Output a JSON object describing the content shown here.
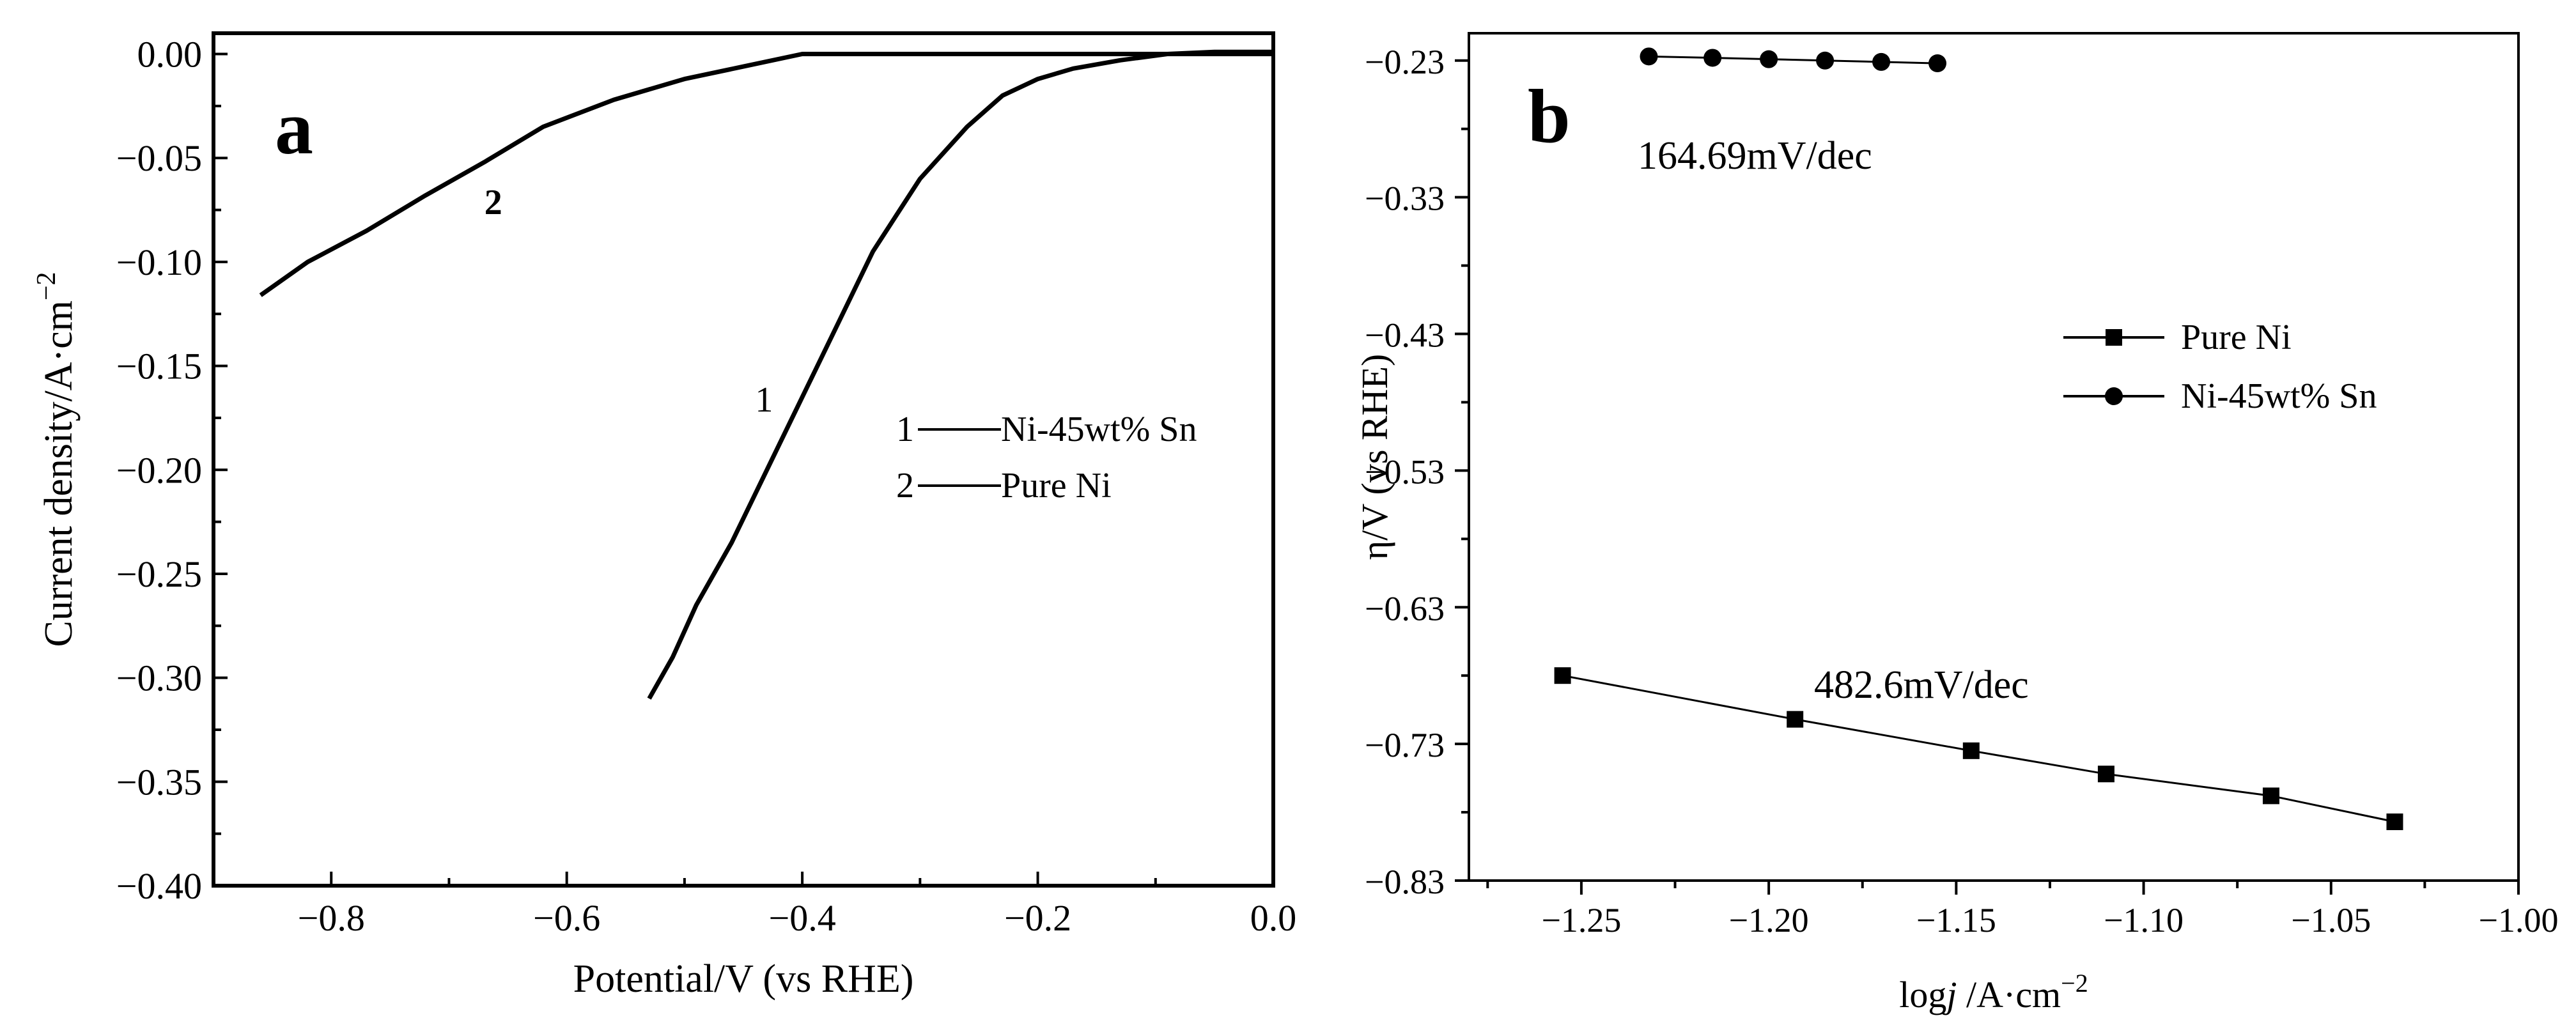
{
  "chart_data": [
    {
      "panel": "a",
      "type": "line",
      "xlabel": "Potential/V (vs RHE)",
      "ylabel_main": "Current density/A·cm",
      "ylabel_sup": "−2",
      "xlim": [
        -0.9,
        0.0
      ],
      "ylim": [
        -0.4,
        0.01
      ],
      "x_ticks": [
        -0.8,
        -0.6,
        -0.4,
        -0.2,
        0.0
      ],
      "x_tick_labels": [
        "−0.8",
        "−0.6",
        "−0.4",
        "−0.2",
        "0.0"
      ],
      "y_ticks": [
        0.0,
        -0.05,
        -0.1,
        -0.15,
        -0.2,
        -0.25,
        -0.3,
        -0.35,
        -0.4
      ],
      "y_tick_labels": [
        "0.00",
        "−0.05",
        "−0.10",
        "−0.15",
        "−0.20",
        "−0.25",
        "−0.30",
        "−0.35",
        "−0.40"
      ],
      "legend": [
        {
          "num": "1",
          "label": "Ni-45wt% Sn"
        },
        {
          "num": "2",
          "label": "Pure Ni"
        }
      ],
      "series": [
        {
          "name": "Ni-45wt% Sn",
          "curve_label": "1",
          "x": [
            -0.53,
            -0.51,
            -0.49,
            -0.46,
            -0.43,
            -0.4,
            -0.37,
            -0.34,
            -0.3,
            -0.26,
            -0.23,
            -0.2,
            -0.17,
            -0.13,
            -0.09,
            -0.05,
            -0.02,
            0.0
          ],
          "y": [
            -0.31,
            -0.29,
            -0.265,
            -0.235,
            -0.2,
            -0.165,
            -0.13,
            -0.095,
            -0.06,
            -0.035,
            -0.02,
            -0.012,
            -0.007,
            -0.003,
            0.0,
            0.001,
            0.001,
            0.001
          ]
        },
        {
          "name": "Pure Ni",
          "curve_label": "2",
          "x": [
            -0.86,
            -0.82,
            -0.77,
            -0.72,
            -0.67,
            -0.62,
            -0.56,
            -0.5,
            -0.45,
            -0.4,
            -0.3,
            -0.2,
            -0.1,
            0.0
          ],
          "y": [
            -0.116,
            -0.1,
            -0.085,
            -0.068,
            -0.052,
            -0.035,
            -0.022,
            -0.012,
            -0.006,
            0.0,
            0.0,
            0.0,
            0.0,
            0.0
          ]
        }
      ]
    },
    {
      "panel": "b",
      "type": "scatter",
      "xlabel_main": "log",
      "xlabel_italic": "j",
      "xlabel_rest": " /A·cm",
      "xlabel_sup": "−2",
      "ylabel": "η/V (vs RHE)",
      "xlim": [
        -1.28,
        -1.0
      ],
      "ylim": [
        -0.83,
        -0.21
      ],
      "x_ticks": [
        -1.25,
        -1.2,
        -1.15,
        -1.1,
        -1.05,
        -1.0
      ],
      "x_tick_labels": [
        "−1.25",
        "−1.20",
        "−1.15",
        "−1.10",
        "−1.05",
        "−1.00"
      ],
      "y_ticks": [
        -0.23,
        -0.33,
        -0.43,
        -0.53,
        -0.63,
        -0.73,
        -0.83
      ],
      "y_tick_labels": [
        "−0.23",
        "−0.33",
        "−0.43",
        "−0.53",
        "−0.63",
        "−0.73",
        "−0.83"
      ],
      "legend": [
        {
          "label": "Pure Ni",
          "marker": "square"
        },
        {
          "label": "Ni-45wt% Sn",
          "marker": "circle"
        }
      ],
      "annotations": [
        "164.69mV/dec",
        "482.6mV/dec"
      ],
      "series": [
        {
          "name": "Pure Ni",
          "marker": "square",
          "x": [
            -1.255,
            -1.193,
            -1.146,
            -1.11,
            -1.066,
            -1.033
          ],
          "y": [
            -0.68,
            -0.712,
            -0.735,
            -0.752,
            -0.768,
            -0.787
          ]
        },
        {
          "name": "Ni-45wt% Sn",
          "marker": "circle",
          "x": [
            -1.232,
            -1.215,
            -1.2,
            -1.185,
            -1.17,
            -1.155
          ],
          "y": [
            -0.227,
            -0.228,
            -0.229,
            -0.23,
            -0.231,
            -0.232
          ]
        }
      ]
    }
  ],
  "panel_labels": {
    "a": "a",
    "b": "b"
  }
}
